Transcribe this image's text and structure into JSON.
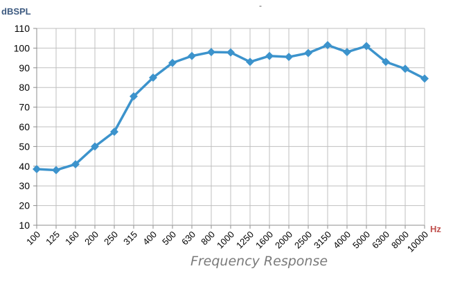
{
  "chart_data": {
    "type": "line",
    "title": "Frequency Response",
    "top_mark": "-",
    "ylabel": "dBSPL",
    "xlabel": "Hz",
    "ylim": [
      10,
      110
    ],
    "yticks": [
      10,
      20,
      30,
      40,
      50,
      60,
      70,
      80,
      90,
      100,
      110
    ],
    "grid": true,
    "legend": "none",
    "categories": [
      "100",
      "125",
      "160",
      "200",
      "250",
      "315",
      "400",
      "500",
      "630",
      "800",
      "1000",
      "1250",
      "1600",
      "2000",
      "2500",
      "3150",
      "4000",
      "5000",
      "6300",
      "8000",
      "10000"
    ],
    "series": [
      {
        "values": [
          38.5,
          38,
          41,
          50,
          57.5,
          75.5,
          85,
          92.5,
          96,
          98,
          97.8,
          93,
          96,
          95.5,
          97.5,
          101.5,
          98,
          101,
          93,
          89.5,
          84.5
        ]
      }
    ],
    "colors": {
      "series": "#3c93cc",
      "ylabel": "#3d5a80",
      "xlabel": "#c0504d"
    }
  }
}
